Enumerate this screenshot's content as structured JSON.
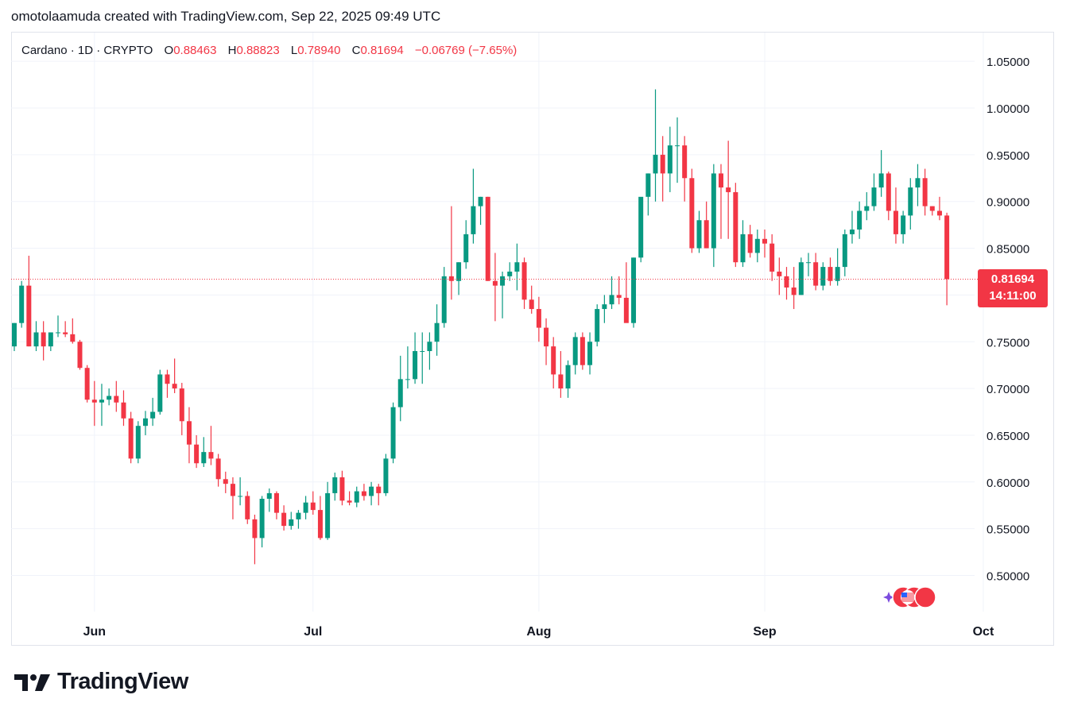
{
  "header": {
    "text": "omotolaamuda created with TradingView.com, Sep 22, 2025 09:49 UTC"
  },
  "legend": {
    "symbol": "Cardano · 1D · CRYPTO",
    "o_label": "O",
    "o_value": "0.88463",
    "h_label": "H",
    "h_value": "0.88823",
    "l_label": "L",
    "l_value": "0.78940",
    "c_label": "C",
    "c_value": "0.81694",
    "change": "−0.06769 (−7.65%)"
  },
  "last_price": {
    "value": "0.81694",
    "countdown": "14:11:00"
  },
  "brand": {
    "name": "TradingView"
  },
  "colors": {
    "up": "#089981",
    "down": "#f23645",
    "grid": "#f0f3fa",
    "axis_text": "#131722"
  },
  "chart_data": {
    "type": "candlestick",
    "title": "Cardano · 1D · CRYPTO",
    "ylim": [
      0.46,
      1.08
    ],
    "y_ticks": [
      "1.05000",
      "1.00000",
      "0.95000",
      "0.90000",
      "0.85000",
      "0.80000",
      "0.75000",
      "0.70000",
      "0.65000",
      "0.60000",
      "0.55000",
      "0.50000"
    ],
    "x_ticks": [
      {
        "label": "Jun",
        "date": "2025-06-01"
      },
      {
        "label": "Jul",
        "date": "2025-07-01"
      },
      {
        "label": "Aug",
        "date": "2025-08-01"
      },
      {
        "label": "Sep",
        "date": "2025-09-01"
      },
      {
        "label": "Oct",
        "date": "2025-10-01"
      }
    ],
    "start_date": "2025-05-21",
    "candles": [
      [
        0.745,
        0.77,
        0.74,
        0.77
      ],
      [
        0.77,
        0.815,
        0.765,
        0.81
      ],
      [
        0.81,
        0.842,
        0.745,
        0.745
      ],
      [
        0.745,
        0.772,
        0.74,
        0.76
      ],
      [
        0.76,
        0.772,
        0.73,
        0.745
      ],
      [
        0.745,
        0.76,
        0.74,
        0.76
      ],
      [
        0.76,
        0.778,
        0.755,
        0.76
      ],
      [
        0.76,
        0.772,
        0.755,
        0.758
      ],
      [
        0.758,
        0.775,
        0.748,
        0.75
      ],
      [
        0.75,
        0.752,
        0.72,
        0.722
      ],
      [
        0.722,
        0.725,
        0.685,
        0.688
      ],
      [
        0.688,
        0.708,
        0.66,
        0.685
      ],
      [
        0.685,
        0.705,
        0.66,
        0.688
      ],
      [
        0.688,
        0.7,
        0.682,
        0.692
      ],
      [
        0.692,
        0.708,
        0.675,
        0.685
      ],
      [
        0.685,
        0.698,
        0.66,
        0.668
      ],
      [
        0.668,
        0.675,
        0.62,
        0.625
      ],
      [
        0.625,
        0.665,
        0.62,
        0.66
      ],
      [
        0.66,
        0.676,
        0.65,
        0.668
      ],
      [
        0.668,
        0.69,
        0.66,
        0.675
      ],
      [
        0.675,
        0.72,
        0.672,
        0.715
      ],
      [
        0.715,
        0.72,
        0.69,
        0.705
      ],
      [
        0.705,
        0.732,
        0.695,
        0.7
      ],
      [
        0.7,
        0.706,
        0.65,
        0.665
      ],
      [
        0.665,
        0.68,
        0.62,
        0.64
      ],
      [
        0.64,
        0.65,
        0.615,
        0.62
      ],
      [
        0.62,
        0.648,
        0.616,
        0.632
      ],
      [
        0.632,
        0.66,
        0.618,
        0.625
      ],
      [
        0.625,
        0.63,
        0.595,
        0.603
      ],
      [
        0.603,
        0.611,
        0.588,
        0.598
      ],
      [
        0.598,
        0.605,
        0.56,
        0.585
      ],
      [
        0.585,
        0.605,
        0.575,
        0.585
      ],
      [
        0.585,
        0.59,
        0.555,
        0.56
      ],
      [
        0.56,
        0.565,
        0.512,
        0.54
      ],
      [
        0.54,
        0.585,
        0.53,
        0.582
      ],
      [
        0.582,
        0.593,
        0.568,
        0.588
      ],
      [
        0.588,
        0.59,
        0.56,
        0.567
      ],
      [
        0.567,
        0.575,
        0.548,
        0.553
      ],
      [
        0.553,
        0.568,
        0.549,
        0.56
      ],
      [
        0.56,
        0.57,
        0.55,
        0.567
      ],
      [
        0.567,
        0.585,
        0.56,
        0.578
      ],
      [
        0.578,
        0.59,
        0.565,
        0.57
      ],
      [
        0.57,
        0.585,
        0.538,
        0.54
      ],
      [
        0.54,
        0.6,
        0.538,
        0.588
      ],
      [
        0.588,
        0.61,
        0.58,
        0.605
      ],
      [
        0.605,
        0.612,
        0.575,
        0.58
      ],
      [
        0.58,
        0.59,
        0.575,
        0.578
      ],
      [
        0.578,
        0.595,
        0.573,
        0.59
      ],
      [
        0.59,
        0.598,
        0.58,
        0.585
      ],
      [
        0.585,
        0.6,
        0.575,
        0.595
      ],
      [
        0.595,
        0.598,
        0.575,
        0.588
      ],
      [
        0.588,
        0.63,
        0.585,
        0.625
      ],
      [
        0.625,
        0.685,
        0.62,
        0.68
      ],
      [
        0.68,
        0.735,
        0.665,
        0.71
      ],
      [
        0.71,
        0.745,
        0.7,
        0.71
      ],
      [
        0.71,
        0.76,
        0.705,
        0.74
      ],
      [
        0.74,
        0.76,
        0.705,
        0.74
      ],
      [
        0.74,
        0.76,
        0.72,
        0.75
      ],
      [
        0.75,
        0.79,
        0.735,
        0.77
      ],
      [
        0.77,
        0.83,
        0.765,
        0.82
      ],
      [
        0.82,
        0.895,
        0.795,
        0.815
      ],
      [
        0.815,
        0.835,
        0.8,
        0.835
      ],
      [
        0.835,
        0.88,
        0.828,
        0.865
      ],
      [
        0.865,
        0.935,
        0.855,
        0.895
      ],
      [
        0.895,
        0.905,
        0.875,
        0.905
      ],
      [
        0.905,
        0.905,
        0.815,
        0.815
      ],
      [
        0.815,
        0.845,
        0.772,
        0.81
      ],
      [
        0.81,
        0.825,
        0.775,
        0.82
      ],
      [
        0.82,
        0.835,
        0.815,
        0.825
      ],
      [
        0.825,
        0.855,
        0.805,
        0.835
      ],
      [
        0.835,
        0.84,
        0.785,
        0.795
      ],
      [
        0.795,
        0.81,
        0.78,
        0.785
      ],
      [
        0.785,
        0.798,
        0.75,
        0.765
      ],
      [
        0.765,
        0.775,
        0.725,
        0.745
      ],
      [
        0.745,
        0.755,
        0.7,
        0.715
      ],
      [
        0.715,
        0.74,
        0.69,
        0.7
      ],
      [
        0.7,
        0.73,
        0.69,
        0.725
      ],
      [
        0.725,
        0.76,
        0.715,
        0.755
      ],
      [
        0.755,
        0.76,
        0.72,
        0.725
      ],
      [
        0.725,
        0.76,
        0.715,
        0.75
      ],
      [
        0.75,
        0.79,
        0.745,
        0.785
      ],
      [
        0.785,
        0.8,
        0.77,
        0.79
      ],
      [
        0.79,
        0.82,
        0.785,
        0.8
      ],
      [
        0.8,
        0.82,
        0.79,
        0.797
      ],
      [
        0.797,
        0.835,
        0.775,
        0.77
      ],
      [
        0.77,
        0.84,
        0.765,
        0.84
      ],
      [
        0.84,
        0.9,
        0.835,
        0.905
      ],
      [
        0.905,
        0.93,
        0.885,
        0.93
      ],
      [
        0.93,
        1.02,
        0.9,
        0.95
      ],
      [
        0.95,
        0.97,
        0.9,
        0.93
      ],
      [
        0.93,
        0.98,
        0.91,
        0.96
      ],
      [
        0.96,
        0.99,
        0.92,
        0.96
      ],
      [
        0.96,
        0.97,
        0.9,
        0.925
      ],
      [
        0.925,
        0.935,
        0.845,
        0.85
      ],
      [
        0.85,
        0.89,
        0.845,
        0.88
      ],
      [
        0.88,
        0.9,
        0.85,
        0.85
      ],
      [
        0.85,
        0.94,
        0.83,
        0.93
      ],
      [
        0.93,
        0.94,
        0.86,
        0.915
      ],
      [
        0.915,
        0.965,
        0.86,
        0.91
      ],
      [
        0.91,
        0.92,
        0.83,
        0.835
      ],
      [
        0.835,
        0.88,
        0.83,
        0.865
      ],
      [
        0.865,
        0.875,
        0.84,
        0.845
      ],
      [
        0.845,
        0.87,
        0.835,
        0.86
      ],
      [
        0.86,
        0.87,
        0.84,
        0.855
      ],
      [
        0.855,
        0.865,
        0.815,
        0.825
      ],
      [
        0.825,
        0.84,
        0.8,
        0.82
      ],
      [
        0.82,
        0.83,
        0.795,
        0.808
      ],
      [
        0.808,
        0.83,
        0.785,
        0.8
      ],
      [
        0.8,
        0.84,
        0.8,
        0.835
      ],
      [
        0.835,
        0.845,
        0.82,
        0.835
      ],
      [
        0.835,
        0.845,
        0.805,
        0.81
      ],
      [
        0.81,
        0.835,
        0.805,
        0.83
      ],
      [
        0.83,
        0.84,
        0.81,
        0.815
      ],
      [
        0.815,
        0.85,
        0.81,
        0.83
      ],
      [
        0.83,
        0.87,
        0.82,
        0.865
      ],
      [
        0.865,
        0.89,
        0.855,
        0.87
      ],
      [
        0.87,
        0.9,
        0.86,
        0.89
      ],
      [
        0.89,
        0.91,
        0.88,
        0.895
      ],
      [
        0.895,
        0.93,
        0.89,
        0.915
      ],
      [
        0.915,
        0.955,
        0.905,
        0.93
      ],
      [
        0.93,
        0.932,
        0.88,
        0.89
      ],
      [
        0.89,
        0.915,
        0.855,
        0.865
      ],
      [
        0.865,
        0.89,
        0.855,
        0.885
      ],
      [
        0.885,
        0.925,
        0.87,
        0.915
      ],
      [
        0.915,
        0.94,
        0.895,
        0.925
      ],
      [
        0.925,
        0.935,
        0.885,
        0.895
      ],
      [
        0.895,
        0.895,
        0.885,
        0.89
      ],
      [
        0.89,
        0.905,
        0.88,
        0.885
      ],
      [
        0.885,
        0.888,
        0.789,
        0.817
      ]
    ]
  }
}
